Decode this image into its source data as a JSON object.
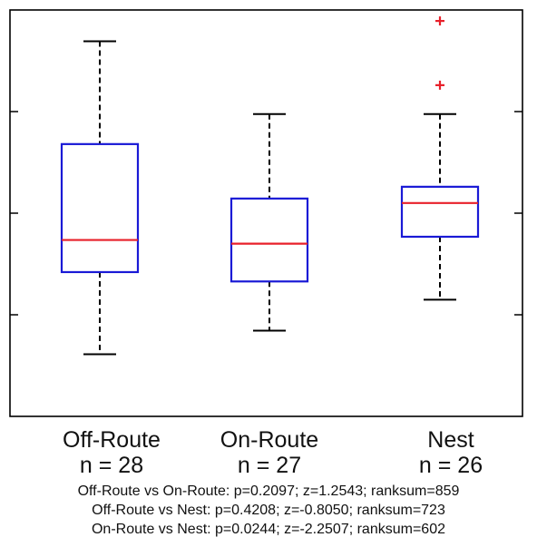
{
  "chart_data": {
    "type": "box",
    "title": "",
    "xlabel": "",
    "ylabel": "",
    "yticks_labeled": false,
    "ylim": [
      0,
      100
    ],
    "colors": {
      "box": "#1a1ad6",
      "median": "#e8202a",
      "whisker": "#000000",
      "outlier": "#e8202a",
      "axis": "#000000"
    },
    "groups": [
      {
        "name": "Off-Route",
        "n_label": "n = 28",
        "whisker_high": 92.3,
        "q3": 67.0,
        "median": 43.4,
        "q1": 35.5,
        "whisker_low": 15.3,
        "outliers": []
      },
      {
        "name": "On-Route",
        "n_label": "n = 27",
        "whisker_high": 74.4,
        "q3": 53.6,
        "median": 42.5,
        "q1": 33.2,
        "whisker_low": 21.1,
        "outliers": []
      },
      {
        "name": "Nest",
        "n_label": "n = 26",
        "whisker_high": 74.4,
        "q3": 56.5,
        "median": 52.5,
        "q1": 44.2,
        "whisker_low": 28.7,
        "outliers": [
          97.3,
          81.5
        ]
      }
    ]
  },
  "stats": [
    "Off-Route vs On-Route: p=0.2097; z=1.2543; ranksum=859",
    "Off-Route vs Nest: p=0.4208; z=-0.8050; ranksum=723",
    "On-Route vs Nest: p=0.0244; z=-2.2507; ranksum=602"
  ]
}
